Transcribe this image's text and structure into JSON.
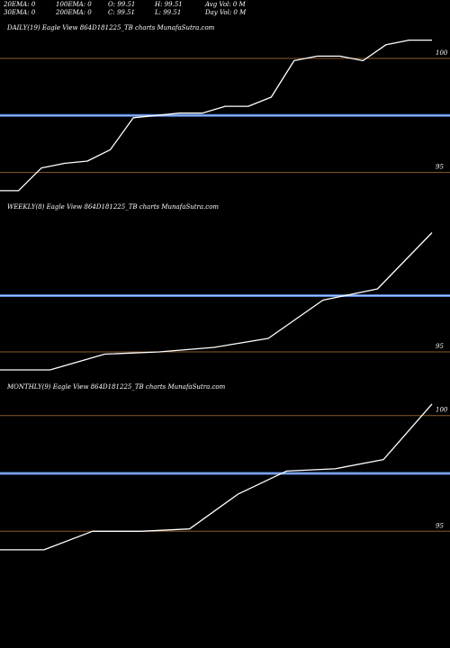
{
  "header": {
    "row1": [
      "20EMA: 0",
      "100EMA: 0",
      "O: 99.51",
      "H: 99.51",
      "Avg Vol: 0  M"
    ],
    "row2": [
      "30EMA: 0",
      "200EMA: 0",
      "C: 99.51",
      "L: 99.51",
      "Day Vol: 0  M"
    ]
  },
  "colors": {
    "background": "#000000",
    "price_line": "#ffffff",
    "ema_band": "#4f7fd6",
    "gridline": "#8b5a2b"
  },
  "chart_data": [
    {
      "type": "line",
      "title": "DAILY(19) Eagle  View  864D181225_TB charts MunafaSutra.com",
      "ylim": [
        94.0,
        101.1
      ],
      "yticks": [
        100,
        95
      ],
      "ytick_labels": [
        "100",
        "95"
      ],
      "reference_line": 97.5,
      "x": [
        1,
        2,
        3,
        4,
        5,
        6,
        7,
        8,
        9,
        10,
        11,
        12,
        13,
        14,
        15,
        16,
        17,
        18,
        19,
        20
      ],
      "series": [
        {
          "values": [
            94.2,
            94.2,
            95.2,
            95.4,
            95.5,
            96.0,
            97.4,
            97.5,
            97.6,
            97.6,
            97.9,
            97.9,
            98.3,
            99.9,
            100.1,
            100.1,
            99.9,
            100.6,
            100.8,
            100.8
          ]
        }
      ]
    },
    {
      "type": "line",
      "title": "WEEKLY(8) Eagle  View  864D181225_TB charts MunafaSutra.com",
      "ylim": [
        94.0,
        101.2
      ],
      "yticks": [
        95
      ],
      "ytick_labels": [
        "95"
      ],
      "reference_line": 97.5,
      "x": [
        1,
        2,
        3,
        4,
        5,
        6,
        7,
        8,
        9
      ],
      "series": [
        {
          "values": [
            94.2,
            94.2,
            94.9,
            95.0,
            95.2,
            95.6,
            97.3,
            97.8,
            100.3
          ]
        }
      ]
    },
    {
      "type": "line",
      "title": "MONTHLY(9) Eagle  View  864D181225_TB charts MunafaSutra.com",
      "ylim": [
        94.0,
        101.0
      ],
      "yticks": [
        100,
        95
      ],
      "ytick_labels": [
        "100",
        "95"
      ],
      "reference_line": 97.5,
      "x": [
        1,
        2,
        3,
        4,
        5,
        6,
        7,
        8,
        9,
        10
      ],
      "series": [
        {
          "values": [
            94.2,
            94.2,
            95.0,
            95.0,
            95.1,
            96.6,
            97.6,
            97.7,
            98.1,
            100.5
          ]
        }
      ]
    }
  ]
}
